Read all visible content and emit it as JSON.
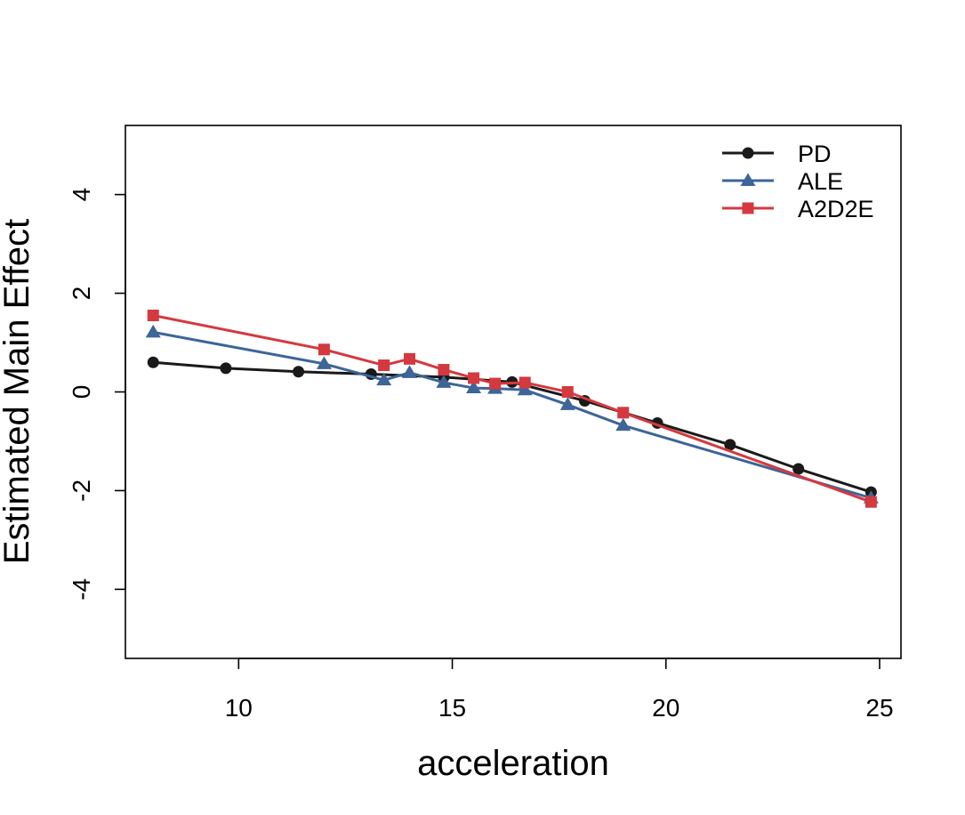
{
  "chart_data": {
    "type": "line",
    "xlabel": "acceleration",
    "ylabel": "Estimated Main Effect",
    "xlim": [
      7.35,
      25.5
    ],
    "ylim": [
      -5.4,
      5.4
    ],
    "xticks": [
      10,
      15,
      20,
      25
    ],
    "yticks": [
      -4,
      -2,
      0,
      2,
      4
    ],
    "legend_position": "top-right",
    "series": [
      {
        "name": "PD",
        "color": "#1a1a1a",
        "marker": "circle",
        "x": [
          8.0,
          9.7,
          11.4,
          13.1,
          14.8,
          16.4,
          18.1,
          19.8,
          21.5,
          23.1,
          24.8
        ],
        "y": [
          0.6,
          0.48,
          0.41,
          0.36,
          0.3,
          0.2,
          -0.18,
          -0.63,
          -1.07,
          -1.56,
          -2.03
        ]
      },
      {
        "name": "ALE",
        "color": "#3d6597",
        "marker": "triangle",
        "x": [
          8.0,
          12.0,
          13.4,
          14.0,
          14.8,
          15.5,
          16.0,
          16.7,
          17.7,
          19.0,
          24.8
        ],
        "y": [
          1.21,
          0.57,
          0.24,
          0.39,
          0.19,
          0.08,
          0.07,
          0.04,
          -0.26,
          -0.68,
          -2.15
        ]
      },
      {
        "name": "A2D2E",
        "color": "#d4393f",
        "marker": "square",
        "x": [
          8.0,
          12.0,
          13.4,
          14.0,
          14.8,
          15.5,
          16.0,
          16.7,
          17.7,
          19.0,
          24.8
        ],
        "y": [
          1.55,
          0.86,
          0.54,
          0.67,
          0.45,
          0.28,
          0.17,
          0.19,
          0.0,
          -0.42,
          -2.23
        ]
      }
    ]
  }
}
